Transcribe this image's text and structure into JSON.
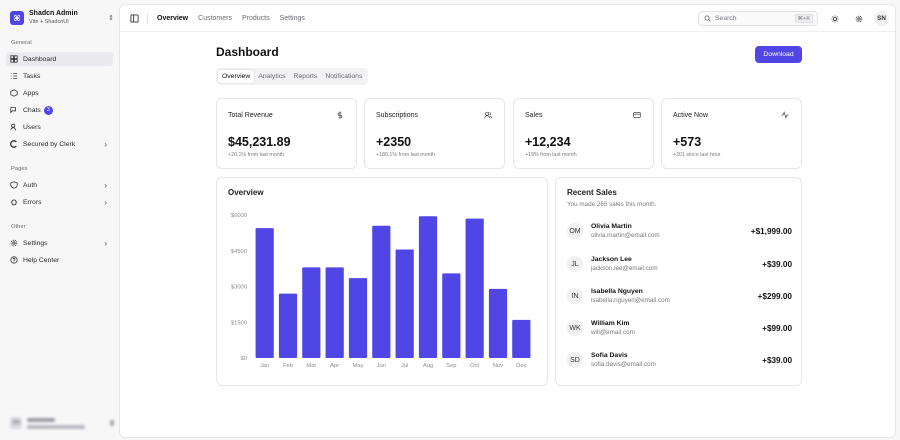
{
  "brand": {
    "title": "Shadcn Admin",
    "subtitle": "Vite + ShadcnUI"
  },
  "sidebar": {
    "sections": [
      {
        "label": "General",
        "items": [
          {
            "label": "Dashboard",
            "icon": "dashboard-icon",
            "active": true
          },
          {
            "label": "Tasks",
            "icon": "tasks-icon"
          },
          {
            "label": "Apps",
            "icon": "apps-icon"
          },
          {
            "label": "Chats",
            "icon": "chats-icon",
            "badge": "3"
          },
          {
            "label": "Users",
            "icon": "users-icon"
          },
          {
            "label": "Secured by Clerk",
            "icon": "clerk-icon",
            "chevron": true
          }
        ]
      },
      {
        "label": "Pages",
        "items": [
          {
            "label": "Auth",
            "icon": "shield-icon",
            "chevron": true
          },
          {
            "label": "Errors",
            "icon": "bug-icon",
            "chevron": true
          }
        ]
      },
      {
        "label": "Other",
        "items": [
          {
            "label": "Settings",
            "icon": "gear-icon",
            "chevron": true
          },
          {
            "label": "Help Center",
            "icon": "help-icon"
          }
        ]
      }
    ]
  },
  "topbar": {
    "nav": [
      "Overview",
      "Customers",
      "Products",
      "Settings"
    ],
    "search_placeholder": "Search",
    "search_shortcut": "⌘+K",
    "avatar_initials": "SN"
  },
  "page": {
    "title": "Dashboard",
    "download_label": "Download",
    "tabs": [
      "Overview",
      "Analytics",
      "Reports",
      "Notifications"
    ]
  },
  "stats": [
    {
      "title": "Total Revenue",
      "value": "$45,231.89",
      "sub": "+20.1% from last month",
      "icon": "dollar-icon"
    },
    {
      "title": "Subscriptions",
      "value": "+2350",
      "sub": "+180.1% from last month",
      "icon": "users-icon"
    },
    {
      "title": "Sales",
      "value": "+12,234",
      "sub": "+19% from last month",
      "icon": "credit-card-icon"
    },
    {
      "title": "Active Now",
      "value": "+573",
      "sub": "+201 since last hour",
      "icon": "activity-icon"
    }
  ],
  "overview": {
    "title": "Overview"
  },
  "chart_data": {
    "type": "bar",
    "categories": [
      "Jan",
      "Feb",
      "Mar",
      "Apr",
      "May",
      "Jun",
      "Jul",
      "Aug",
      "Sep",
      "Oct",
      "Nov",
      "Dec"
    ],
    "values": [
      5450,
      2700,
      3800,
      3800,
      3350,
      5550,
      4550,
      5950,
      3550,
      5850,
      2900,
      1600
    ],
    "ylim": [
      0,
      6000
    ],
    "yticks": [
      "$0",
      "$1500",
      "$3000",
      "$4500",
      "$6000"
    ],
    "ytick_values": [
      0,
      1500,
      3000,
      4500,
      6000
    ],
    "title": "Overview",
    "bar_color": "#4f46e5",
    "grid": false
  },
  "recent_sales": {
    "title": "Recent Sales",
    "subtitle": "You made 265 sales this month.",
    "rows": [
      {
        "initials": "OM",
        "name": "Olivia Martin",
        "email": "olivia.martin@email.com",
        "amount": "+$1,999.00"
      },
      {
        "initials": "JL",
        "name": "Jackson Lee",
        "email": "jackson.lee@email.com",
        "amount": "+$39.00"
      },
      {
        "initials": "IN",
        "name": "Isabella Nguyen",
        "email": "isabella.nguyen@email.com",
        "amount": "+$299.00"
      },
      {
        "initials": "WK",
        "name": "William Kim",
        "email": "will@email.com",
        "amount": "+$99.00"
      },
      {
        "initials": "SD",
        "name": "Sofia Davis",
        "email": "sofia.davis@email.com",
        "amount": "+$39.00"
      }
    ]
  },
  "user_footer": {
    "initials": "SN"
  },
  "colors": {
    "accent": "#4f46e5",
    "border": "#e6e6ea",
    "muted_text": "#7a7a82"
  }
}
